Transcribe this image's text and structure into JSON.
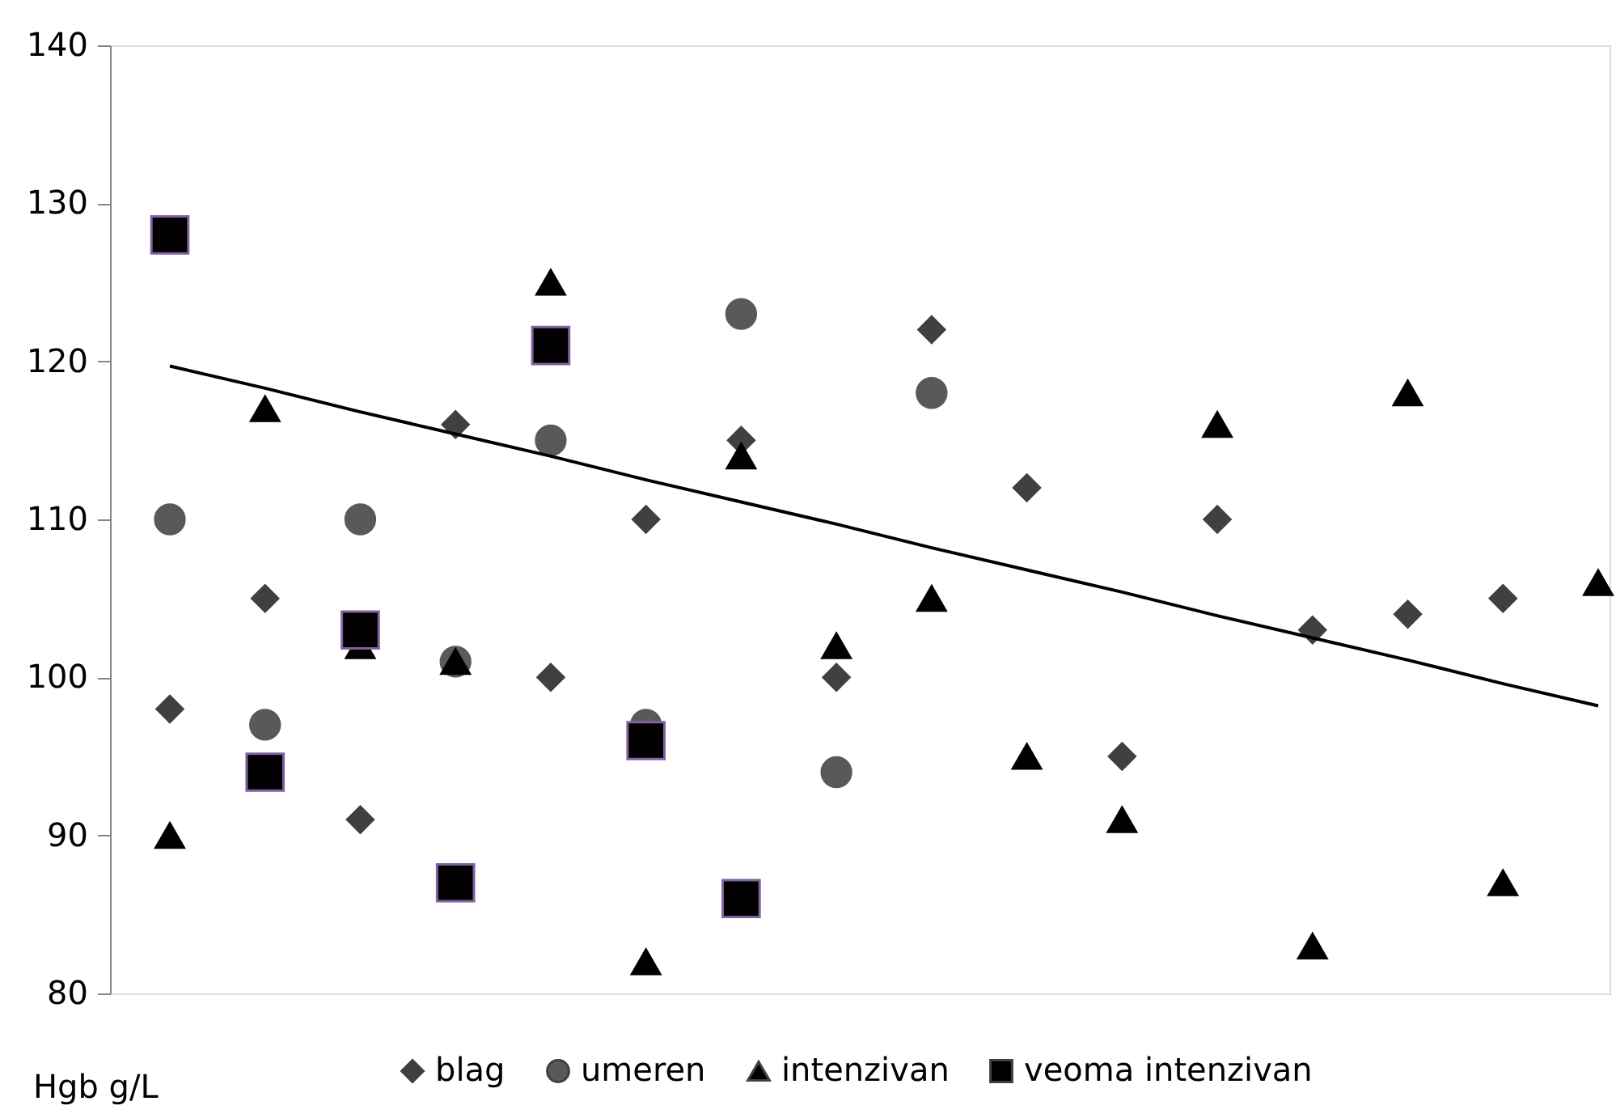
{
  "chart_data": {
    "type": "scatter",
    "ylabel": "Hgb g/L",
    "categories": [
      null,
      null,
      null,
      null,
      null,
      null,
      null,
      null,
      null,
      null,
      null,
      null,
      null,
      null,
      null,
      null
    ],
    "ylim": [
      80,
      140
    ],
    "yticks": [
      80,
      90,
      100,
      110,
      120,
      130,
      140
    ],
    "tick_labels": "y",
    "grid": false,
    "legend": "bottom",
    "series": [
      {
        "name": "blag",
        "color": "#404040",
        "marker": "diamond",
        "values": [
          98,
          105,
          91,
          116,
          100,
          110,
          115,
          100,
          122,
          112,
          95,
          110,
          103,
          104,
          105,
          null
        ]
      },
      {
        "name": "umeren",
        "color": "#595959",
        "marker": "circle",
        "values": [
          110,
          97,
          110,
          101,
          115,
          97,
          123,
          94,
          118,
          null,
          null,
          null,
          null,
          null,
          null,
          null
        ]
      },
      {
        "name": "intenzivan",
        "color": "#000000",
        "marker": "triangle",
        "values": [
          90,
          117,
          102,
          101,
          125,
          82,
          114,
          102,
          105,
          95,
          91,
          116,
          83,
          118,
          87,
          106
        ]
      },
      {
        "name": "veoma intenzivan",
        "color": "#000000",
        "marker": "square",
        "values": [
          128,
          94,
          103,
          87,
          121,
          96,
          86,
          null,
          null,
          null,
          null,
          null,
          null,
          null,
          null,
          null
        ]
      },
      {
        "type": "line",
        "color": "#000000",
        "marker": "none",
        "line_style": "solid",
        "values": [
          119.7,
          118.3,
          116.8,
          115.4,
          114.0,
          112.5,
          111.1,
          109.7,
          108.2,
          106.8,
          105.4,
          103.9,
          102.5,
          101.1,
          99.6,
          98.2
        ]
      }
    ]
  }
}
